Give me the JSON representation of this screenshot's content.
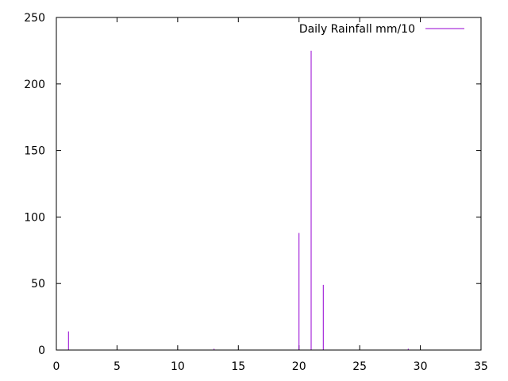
{
  "chart_data": {
    "type": "bar",
    "style": "impulses",
    "title": "",
    "xlabel": "",
    "ylabel": "",
    "xlim": [
      0,
      35
    ],
    "ylim": [
      0,
      250
    ],
    "x_ticks": [
      "0",
      "5",
      "10",
      "15",
      "20",
      "25",
      "30",
      "35"
    ],
    "y_ticks": [
      "0",
      "50",
      "100",
      "150",
      "200",
      "250"
    ],
    "grid": false,
    "legend_position": "top-right",
    "series": [
      {
        "name": "Daily Rainfall mm/10",
        "color": "#9400d3",
        "x": [
          1,
          13,
          20,
          21,
          22,
          29
        ],
        "y": [
          14,
          1,
          88,
          225,
          49,
          1
        ]
      }
    ]
  }
}
